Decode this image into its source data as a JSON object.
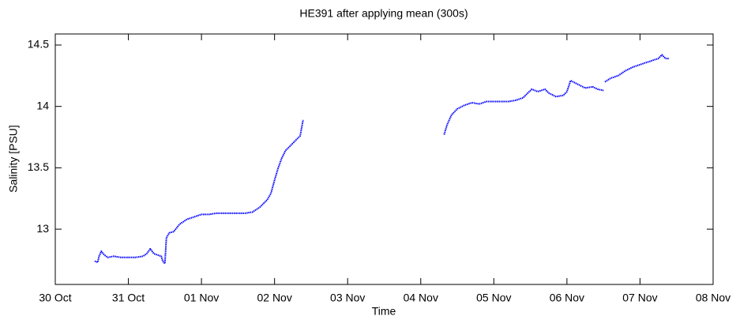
{
  "chart_data": {
    "type": "line",
    "title": "HE391 after applying mean (300s)",
    "x_label": "Time",
    "y_label": "Salinity [PSU]",
    "xlim": [
      0,
      9
    ],
    "xticks": [
      {
        "value": 0,
        "label": "30 Oct"
      },
      {
        "value": 1,
        "label": "31 Oct"
      },
      {
        "value": 2,
        "label": "01 Nov"
      },
      {
        "value": 3,
        "label": "02 Nov"
      },
      {
        "value": 4,
        "label": "03 Nov"
      },
      {
        "value": 5,
        "label": "04 Nov"
      },
      {
        "value": 6,
        "label": "05 Nov"
      },
      {
        "value": 7,
        "label": "06 Nov"
      },
      {
        "value": 8,
        "label": "07 Nov"
      },
      {
        "value": 9,
        "label": "08 Nov"
      }
    ],
    "ylim": [
      12.55,
      14.59
    ],
    "yticks": [
      13,
      13.5,
      14,
      14.5
    ],
    "series": [
      {
        "color": "#0000ff",
        "x": [
          0.54,
          0.58,
          0.6,
          0.63,
          0.67,
          0.72,
          0.8,
          0.9,
          1.0,
          1.1,
          1.2,
          1.25,
          1.3,
          1.35,
          1.4,
          1.45,
          1.47,
          1.5,
          1.52,
          1.56,
          1.62,
          1.7,
          1.8,
          1.9,
          2.0,
          2.1,
          2.2,
          2.3,
          2.4,
          2.5,
          2.6,
          2.7,
          2.8,
          2.9,
          2.95,
          3.0,
          3.05,
          3.1,
          3.15,
          3.2,
          3.25,
          3.3,
          3.35,
          3.39,
          null,
          5.32,
          5.36,
          5.42,
          5.5,
          5.6,
          5.7,
          5.8,
          5.9,
          6.0,
          6.1,
          6.2,
          6.3,
          6.4,
          6.45,
          6.52,
          6.6,
          6.7,
          6.75,
          6.85,
          6.95,
          7.0,
          7.05,
          7.15,
          7.25,
          7.35,
          7.42,
          7.5,
          null,
          7.52,
          7.6,
          7.7,
          7.8,
          7.9,
          8.0,
          8.1,
          8.2,
          8.25,
          8.3,
          8.35,
          8.4
        ],
        "values": [
          12.74,
          12.73,
          12.78,
          12.82,
          12.79,
          12.77,
          12.78,
          12.77,
          12.77,
          12.77,
          12.78,
          12.8,
          12.84,
          12.8,
          12.79,
          12.78,
          12.74,
          12.72,
          12.93,
          12.97,
          12.98,
          13.04,
          13.08,
          13.1,
          13.12,
          13.12,
          13.13,
          13.13,
          13.13,
          13.13,
          13.13,
          13.14,
          13.18,
          13.24,
          13.29,
          13.4,
          13.5,
          13.58,
          13.64,
          13.67,
          13.7,
          13.73,
          13.76,
          13.89,
          null,
          13.77,
          13.85,
          13.93,
          13.98,
          14.01,
          14.03,
          14.02,
          14.04,
          14.04,
          14.04,
          14.04,
          14.05,
          14.07,
          14.1,
          14.14,
          14.12,
          14.14,
          14.11,
          14.08,
          14.09,
          14.12,
          14.21,
          14.18,
          14.15,
          14.16,
          14.14,
          14.13,
          null,
          14.2,
          14.23,
          14.25,
          14.29,
          14.32,
          14.34,
          14.36,
          14.38,
          14.39,
          14.42,
          14.39,
          14.39
        ]
      }
    ]
  }
}
